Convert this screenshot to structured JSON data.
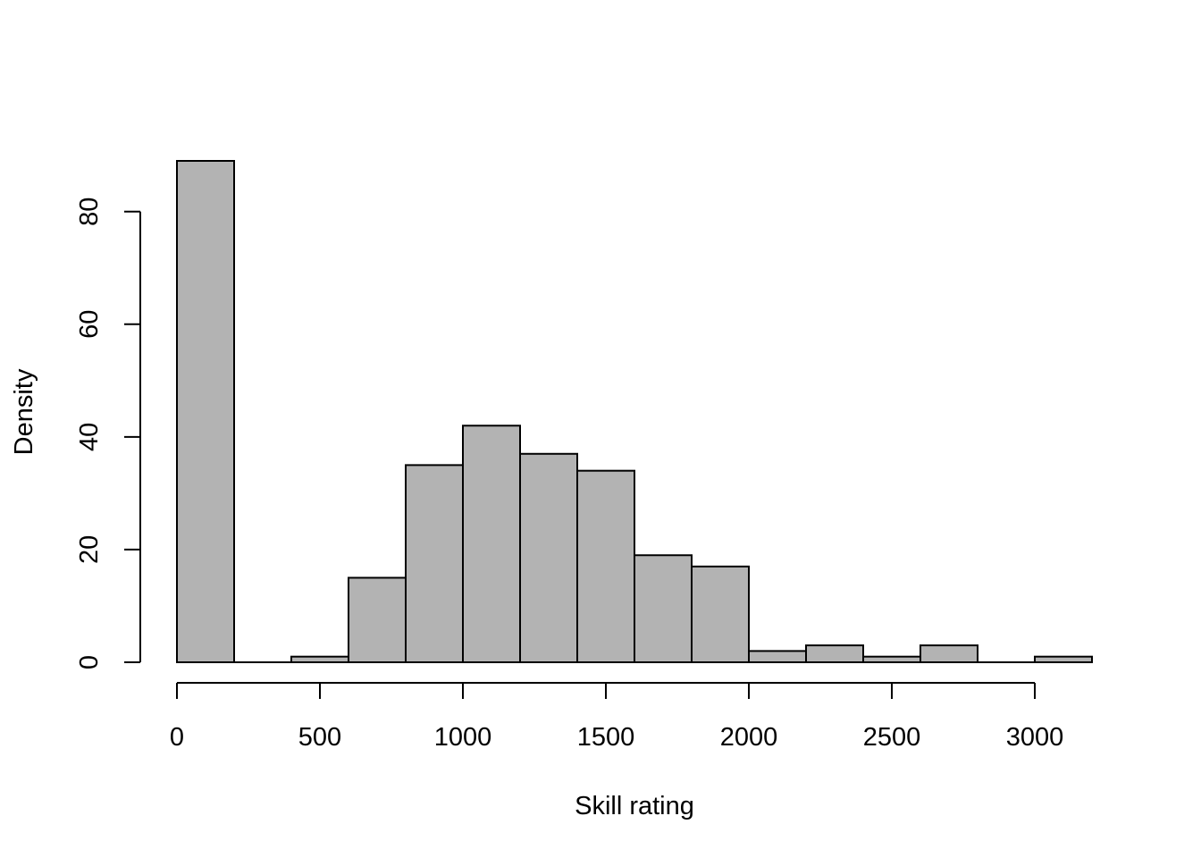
{
  "chart_data": {
    "type": "bar",
    "subtype": "histogram",
    "title": "",
    "xlabel": "Skill rating",
    "ylabel": "Density",
    "bin_width": 200,
    "bins": [
      {
        "start": 0,
        "end": 200,
        "value": 89
      },
      {
        "start": 200,
        "end": 400,
        "value": 0
      },
      {
        "start": 400,
        "end": 600,
        "value": 1
      },
      {
        "start": 600,
        "end": 800,
        "value": 15
      },
      {
        "start": 800,
        "end": 1000,
        "value": 35
      },
      {
        "start": 1000,
        "end": 1200,
        "value": 42
      },
      {
        "start": 1200,
        "end": 1400,
        "value": 37
      },
      {
        "start": 1400,
        "end": 1600,
        "value": 34
      },
      {
        "start": 1600,
        "end": 1800,
        "value": 19
      },
      {
        "start": 1800,
        "end": 2000,
        "value": 17
      },
      {
        "start": 2000,
        "end": 2200,
        "value": 2
      },
      {
        "start": 2200,
        "end": 2400,
        "value": 3
      },
      {
        "start": 2400,
        "end": 2600,
        "value": 1
      },
      {
        "start": 2600,
        "end": 2800,
        "value": 3
      },
      {
        "start": 2800,
        "end": 3000,
        "value": 0
      },
      {
        "start": 3000,
        "end": 3200,
        "value": 1
      }
    ],
    "xlim": [
      0,
      3200
    ],
    "ylim": [
      0,
      89
    ],
    "x_ticks": [
      0,
      500,
      1000,
      1500,
      2000,
      2500,
      3000
    ],
    "x_tick_labels": [
      "0",
      "500",
      "1000",
      "1500",
      "2000",
      "2500",
      "3000"
    ],
    "y_ticks": [
      0,
      20,
      40,
      60,
      80
    ],
    "y_tick_labels": [
      "0",
      "20",
      "40",
      "60",
      "80"
    ],
    "grid": false,
    "legend": "none",
    "bar_color": "#b3b3b3",
    "edge_color": "#000000"
  }
}
